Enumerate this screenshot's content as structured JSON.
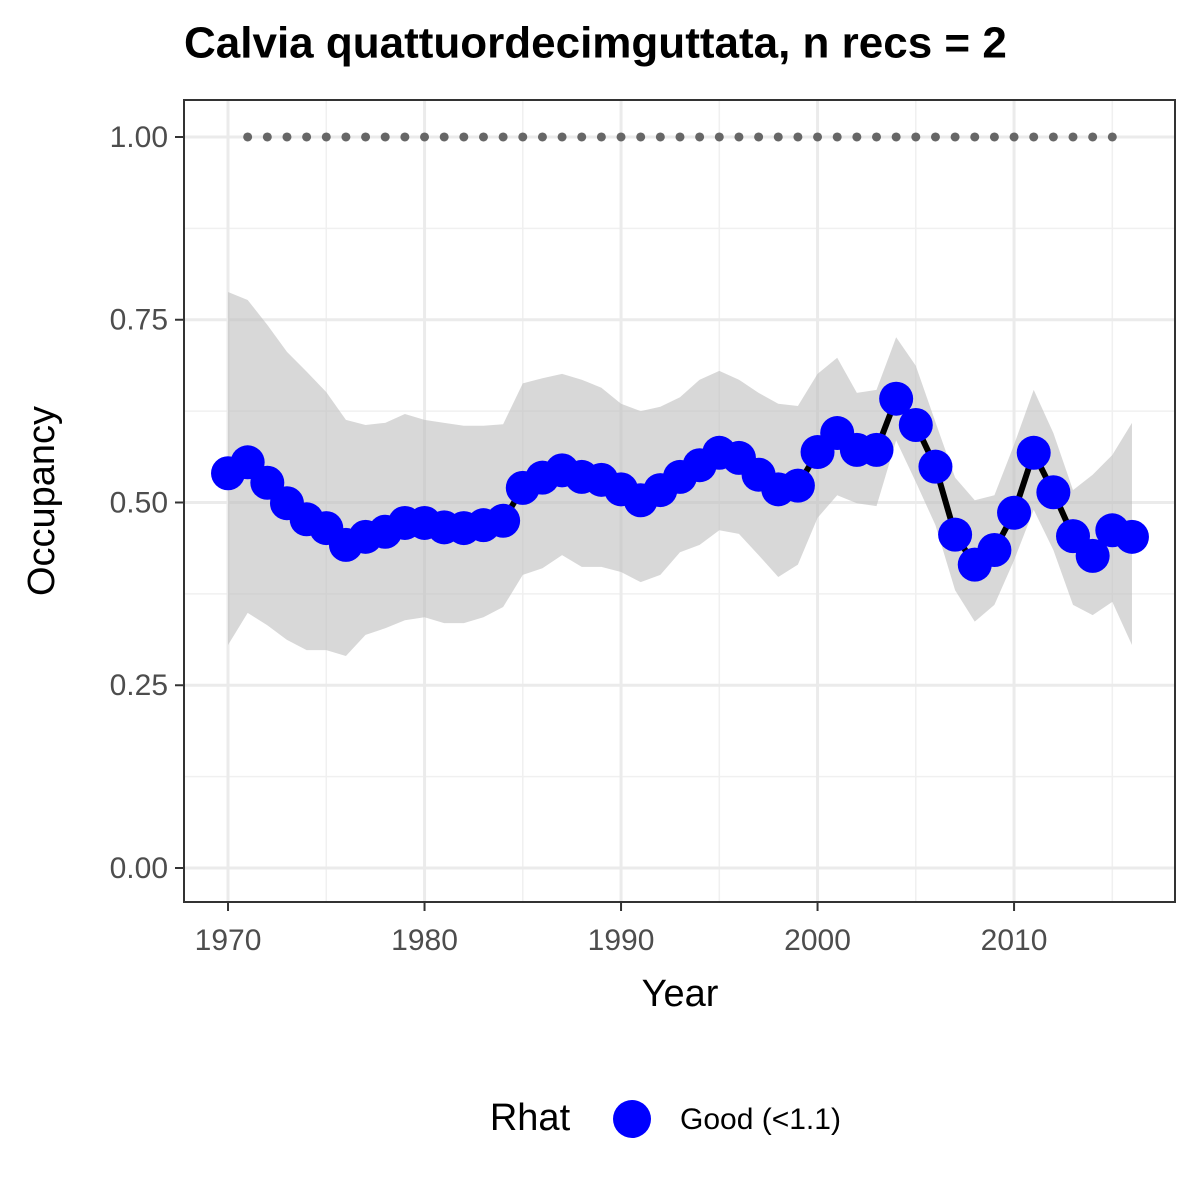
{
  "chart_data": {
    "type": "line",
    "title": "Calvia quattuordecimguttata, n recs = 2",
    "x_label": "Year",
    "y_label": "Occupancy",
    "x": [
      1970,
      1971,
      1972,
      1973,
      1974,
      1975,
      1976,
      1977,
      1978,
      1979,
      1980,
      1981,
      1982,
      1983,
      1984,
      1985,
      1986,
      1987,
      1988,
      1989,
      1990,
      1991,
      1992,
      1993,
      1994,
      1995,
      1996,
      1997,
      1998,
      1999,
      2000,
      2001,
      2002,
      2003,
      2004,
      2005,
      2006,
      2007,
      2008,
      2009,
      2010,
      2011,
      2012,
      2013,
      2014,
      2015,
      2016
    ],
    "xlim": [
      1967.76,
      2018.19
    ],
    "xticks": [
      1970,
      1980,
      1990,
      2000,
      2010
    ],
    "minor_xticks": [
      1975,
      1985,
      1995,
      2005,
      2015
    ],
    "ylim": [
      -0.0465,
      1.0506
    ],
    "yticks": [
      {
        "value": 0,
        "label": "0.00"
      },
      {
        "value": 0.25,
        "label": "0.25"
      },
      {
        "value": 0.5,
        "label": "0.50"
      },
      {
        "value": 0.75,
        "label": "0.75"
      },
      {
        "value": 1,
        "label": "1.00"
      }
    ],
    "minor_yticks": [
      0.125,
      0.375,
      0.625,
      0.875
    ],
    "grid": true,
    "legend_title": "Rhat",
    "legend_position": "bottom",
    "line_color": "#000000",
    "band_color": "#bebebe",
    "series": [
      {
        "name": "Good (<1.1)",
        "color": "#0000ff",
        "values": [
          0.54,
          0.555,
          0.527,
          0.499,
          0.477,
          0.465,
          0.442,
          0.453,
          0.46,
          0.472,
          0.472,
          0.466,
          0.465,
          0.469,
          0.475,
          0.52,
          0.534,
          0.544,
          0.535,
          0.531,
          0.518,
          0.503,
          0.517,
          0.535,
          0.551,
          0.568,
          0.561,
          0.538,
          0.518,
          0.523,
          0.569,
          0.595,
          0.572,
          0.572,
          0.642,
          0.606,
          0.549,
          0.456,
          0.415,
          0.435,
          0.486,
          0.568,
          0.514,
          0.454,
          0.427,
          0.462,
          0.453
        ],
        "lower": [
          0.305,
          0.349,
          0.332,
          0.312,
          0.298,
          0.298,
          0.29,
          0.319,
          0.328,
          0.339,
          0.343,
          0.335,
          0.335,
          0.343,
          0.357,
          0.401,
          0.41,
          0.428,
          0.412,
          0.412,
          0.405,
          0.391,
          0.401,
          0.432,
          0.442,
          0.462,
          0.457,
          0.428,
          0.398,
          0.415,
          0.479,
          0.51,
          0.499,
          0.495,
          0.585,
          0.528,
          0.469,
          0.38,
          0.337,
          0.36,
          0.421,
          0.49,
          0.435,
          0.36,
          0.346,
          0.364,
          0.305
        ],
        "upper": [
          0.788,
          0.777,
          0.743,
          0.706,
          0.679,
          0.651,
          0.613,
          0.606,
          0.609,
          0.621,
          0.613,
          0.609,
          0.605,
          0.605,
          0.607,
          0.663,
          0.67,
          0.676,
          0.668,
          0.657,
          0.635,
          0.625,
          0.631,
          0.644,
          0.668,
          0.68,
          0.668,
          0.65,
          0.635,
          0.632,
          0.676,
          0.698,
          0.65,
          0.654,
          0.726,
          0.687,
          0.61,
          0.534,
          0.503,
          0.51,
          0.579,
          0.654,
          0.595,
          0.517,
          0.538,
          0.565,
          0.609
        ]
      },
      {
        "color": "#666666",
        "values": [
          null,
          1,
          1,
          1,
          1,
          1,
          1,
          1,
          1,
          1,
          1,
          1,
          1,
          1,
          1,
          1,
          1,
          1,
          1,
          1,
          1,
          1,
          1,
          1,
          1,
          1,
          1,
          1,
          1,
          1,
          1,
          1,
          1,
          1,
          1,
          1,
          1,
          1,
          1,
          1,
          1,
          1,
          1,
          1,
          1,
          1,
          null
        ]
      }
    ]
  }
}
